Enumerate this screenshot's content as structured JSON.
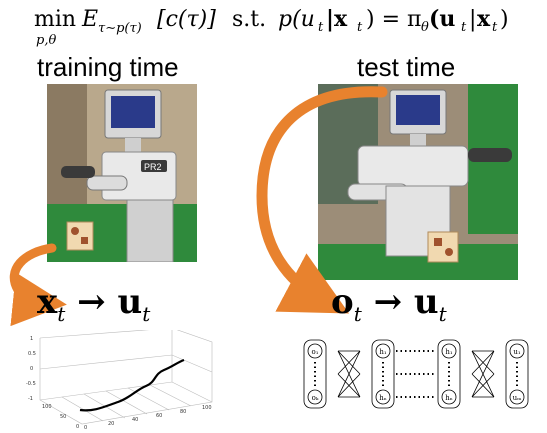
{
  "formula": {
    "min_op": "min",
    "min_vars": "p,θ",
    "objective": "E",
    "objective_sub": "τ∼p(τ)",
    "objective_arg": "[c(τ)]",
    "st": "s.t.",
    "constraint_lhs": "p(u",
    "constraint_lhs_sub": "t",
    "constraint_mid": "|x",
    "constraint_mid_sub": "t",
    "constraint_eq": ") = π",
    "constraint_pi_sub": "θ",
    "constraint_rhs": "(u",
    "constraint_rhs_sub": "t",
    "constraint_rhs_mid": "|",
    "constraint_rhs_obs": "x",
    "constraint_rhs_obs_sub": "t",
    "constraint_close": ")"
  },
  "training": {
    "label": "training time",
    "eq_left": "x",
    "eq_left_sub": "t",
    "eq_arrow": "→",
    "eq_right": "u",
    "eq_right_sub": "t",
    "robot_badge": "PR2"
  },
  "test": {
    "label": "test time",
    "eq_left": "o",
    "eq_left_sub": "t",
    "eq_arrow": "→",
    "eq_right": "u",
    "eq_right_sub": "t"
  },
  "plot": {
    "z_ticks": [
      "1",
      "0.5",
      "0",
      "-0.5",
      "-1"
    ],
    "y_ticks": [
      "100",
      "50",
      "0"
    ],
    "x_ticks": [
      "0",
      "20",
      "40",
      "60",
      "80",
      "100"
    ]
  },
  "network": {
    "input_top": "o₁",
    "input_bottom": "oₖ",
    "hidden1_top": "h₁",
    "hidden1_bottom": "hₙ",
    "hidden2_top": "h₁",
    "hidden2_bottom": "hₙ",
    "output_top": "u₁",
    "output_bottom": "uₘ"
  },
  "colors": {
    "arrow_orange": "#e8822e",
    "background_green": "#2f8a3c",
    "robot_white": "#e9e9e9",
    "robot_dark": "#3a3a3a"
  }
}
